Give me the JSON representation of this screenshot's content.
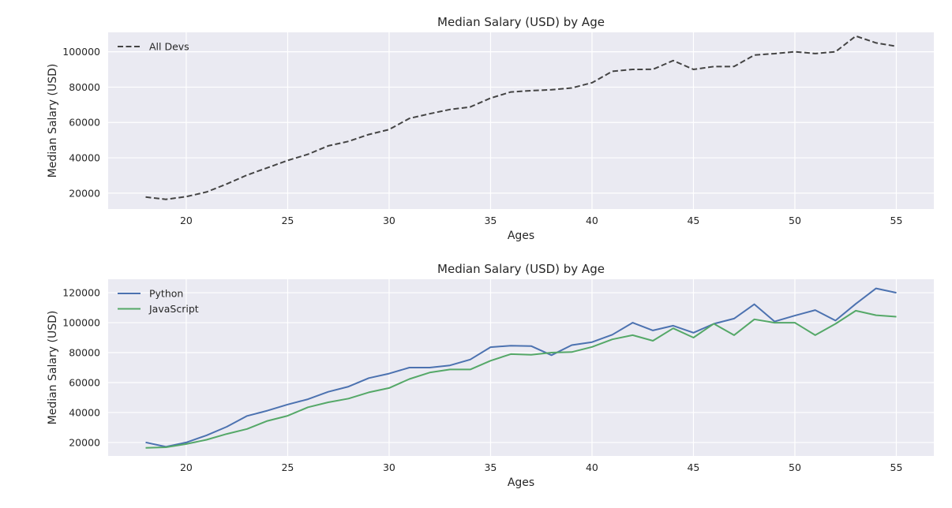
{
  "chart_data": [
    {
      "type": "line",
      "title": "Median Salary (USD) by Age",
      "xlabel": "Ages",
      "ylabel": "Median Salary (USD)",
      "xlim": [
        16.15,
        56.85
      ],
      "ylim": [
        11000,
        111000
      ],
      "xticks": [
        20,
        25,
        30,
        35,
        40,
        45,
        50,
        55
      ],
      "yticks": [
        20000,
        40000,
        60000,
        80000,
        100000
      ],
      "legend_position": "top-left",
      "grid": true,
      "x": [
        18,
        19,
        20,
        21,
        22,
        23,
        24,
        25,
        26,
        27,
        28,
        29,
        30,
        31,
        32,
        33,
        34,
        35,
        36,
        37,
        38,
        39,
        40,
        41,
        42,
        43,
        44,
        45,
        46,
        47,
        48,
        49,
        50,
        51,
        52,
        53,
        54,
        55
      ],
      "series": [
        {
          "name": "All Devs",
          "color": "#444444",
          "dash": "dashed",
          "values": [
            17784,
            16500,
            18012,
            20628,
            25206,
            30252,
            34368,
            38496,
            42000,
            46752,
            49320,
            53200,
            56000,
            62316,
            64928,
            67317,
            68748,
            73752,
            77232,
            78000,
            78508,
            79536,
            82488,
            88935,
            90000,
            90056,
            95000,
            90000,
            91633,
            91660,
            98150,
            98964,
            100000,
            98988,
            100000,
            108923,
            105000,
            103117
          ]
        }
      ]
    },
    {
      "type": "line",
      "title": "Median Salary (USD) by Age",
      "xlabel": "Ages",
      "ylabel": "Median Salary (USD)",
      "xlim": [
        16.15,
        56.85
      ],
      "ylim": [
        11000,
        129000
      ],
      "xticks": [
        20,
        25,
        30,
        35,
        40,
        45,
        50,
        55
      ],
      "yticks": [
        20000,
        40000,
        60000,
        80000,
        100000,
        120000
      ],
      "legend_position": "top-left",
      "grid": true,
      "x": [
        18,
        19,
        20,
        21,
        22,
        23,
        24,
        25,
        26,
        27,
        28,
        29,
        30,
        31,
        32,
        33,
        34,
        35,
        36,
        37,
        38,
        39,
        40,
        41,
        42,
        43,
        44,
        45,
        46,
        47,
        48,
        49,
        50,
        51,
        52,
        53,
        54,
        55
      ],
      "series": [
        {
          "name": "Python",
          "color": "#4c72b0",
          "dash": "solid",
          "values": [
            20046,
            17100,
            20000,
            24744,
            30500,
            37732,
            41247,
            45372,
            48876,
            53850,
            57287,
            63016,
            65998,
            70003,
            70000,
            71496,
            75370,
            83640,
            84666,
            84392,
            78254,
            85000,
            87038,
            91991,
            100000,
            94796,
            97962,
            93302,
            99240,
            102736,
            112285,
            100771,
            104708,
            108423,
            101407,
            112542,
            122870,
            120000
          ]
        },
        {
          "name": "JavaScript",
          "color": "#55a868",
          "dash": "solid",
          "values": [
            16446,
            16791,
            18942,
            21780,
            25704,
            29000,
            34372,
            37810,
            43515,
            46823,
            49293,
            53437,
            56373,
            62375,
            66674,
            68745,
            68746,
            74583,
            79000,
            78508,
            79996,
            80403,
            83820,
            88833,
            91660,
            87892,
            96243,
            90000,
            99313,
            91660,
            102264,
            100000,
            100000,
            91660,
            99240,
            108000,
            105000,
            104000
          ]
        }
      ]
    }
  ]
}
